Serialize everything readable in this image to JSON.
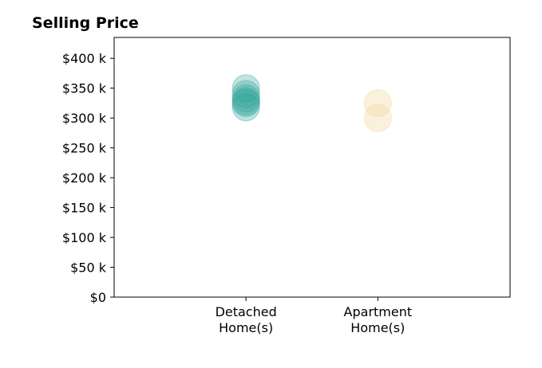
{
  "chart_data": {
    "type": "scatter",
    "title": "Selling Price",
    "xlabel": "",
    "ylabel": "",
    "categories": [
      "Detached\nHome(s)",
      "Apartment\nHome(s)"
    ],
    "ylim": [
      0,
      435000
    ],
    "yticks": [
      0,
      50000,
      100000,
      150000,
      200000,
      250000,
      300000,
      350000,
      400000
    ],
    "ytick_labels": [
      "$0",
      "$50 k",
      "$100 k",
      "$150 k",
      "$200 k",
      "$250 k",
      "$300 k",
      "$350 k",
      "$400 k"
    ],
    "grid": false,
    "series": [
      {
        "category": "Detached\nHome(s)",
        "color": "#2aa198",
        "values": [
          350000,
          340000,
          333000,
          328000,
          325000,
          318000
        ]
      },
      {
        "category": "Apartment\nHome(s)",
        "color": "#f0d090",
        "values": [
          325000,
          300000
        ]
      }
    ]
  }
}
